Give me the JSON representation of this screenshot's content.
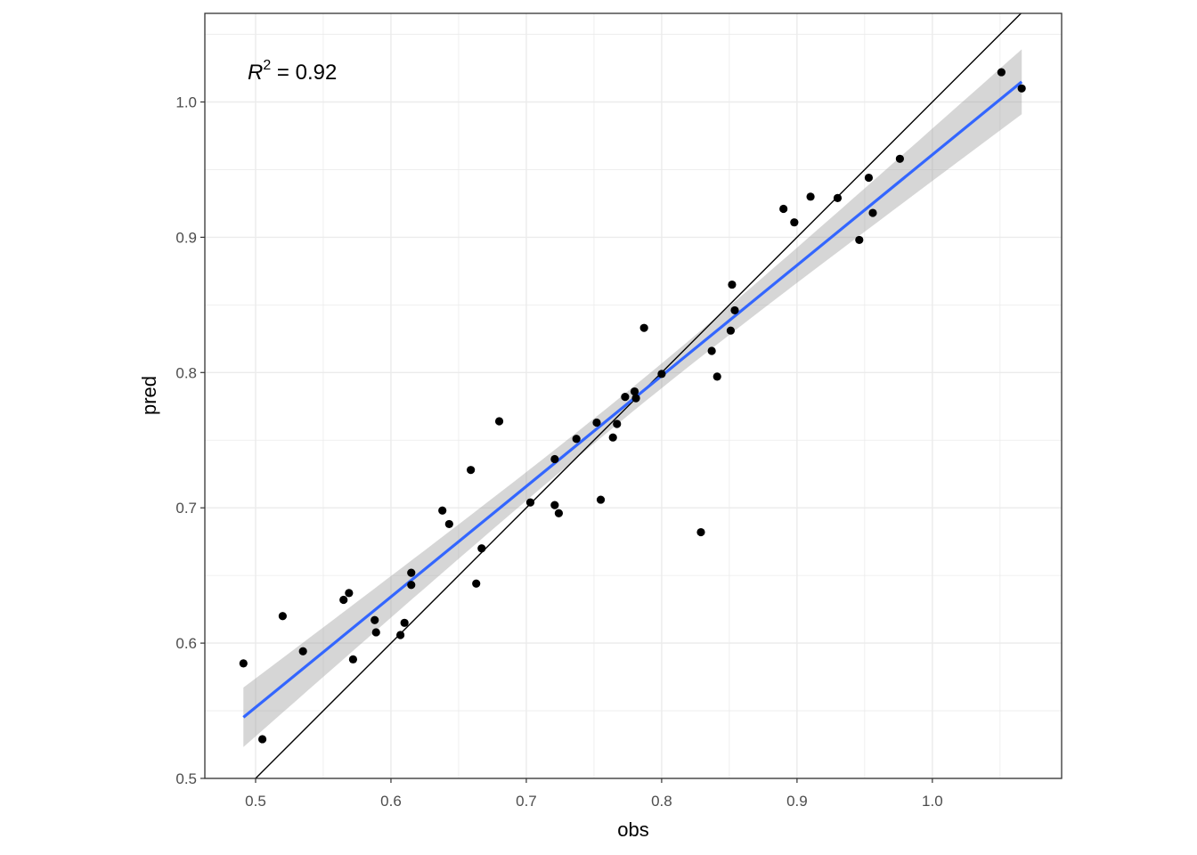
{
  "chart_data": {
    "type": "scatter",
    "xlabel": "obs",
    "ylabel": "pred",
    "xlim": [
      0.4625,
      1.0955
    ],
    "ylim": [
      0.5,
      1.0655
    ],
    "x_ticks": [
      0.5,
      0.6,
      0.7,
      0.8,
      0.9,
      1.0
    ],
    "x_tick_labels": [
      "0.5",
      "0.6",
      "0.7",
      "0.8",
      "0.9",
      "1.0"
    ],
    "y_ticks": [
      0.5,
      0.6,
      0.7,
      0.8,
      0.9,
      1.0
    ],
    "y_tick_labels": [
      "0.5",
      "0.6",
      "0.7",
      "0.8",
      "0.9",
      "1.0"
    ],
    "grid": true,
    "annotation": {
      "r2_symbol": "R",
      "r2_exponent": "2",
      "r2_text": " = 0.92"
    },
    "identity_line": {
      "slope": 1,
      "intercept": 0
    },
    "fit": {
      "slope": 0.817,
      "intercept": 0.144,
      "ci_halfwidth": [
        0.022,
        0.009,
        0.024
      ]
    },
    "points": [
      {
        "x": 0.491,
        "y": 0.585
      },
      {
        "x": 0.505,
        "y": 0.529
      },
      {
        "x": 0.52,
        "y": 0.62
      },
      {
        "x": 0.535,
        "y": 0.594
      },
      {
        "x": 0.565,
        "y": 0.632
      },
      {
        "x": 0.569,
        "y": 0.637
      },
      {
        "x": 0.572,
        "y": 0.588
      },
      {
        "x": 0.588,
        "y": 0.617
      },
      {
        "x": 0.589,
        "y": 0.608
      },
      {
        "x": 0.607,
        "y": 0.606
      },
      {
        "x": 0.61,
        "y": 0.615
      },
      {
        "x": 0.615,
        "y": 0.652
      },
      {
        "x": 0.615,
        "y": 0.643
      },
      {
        "x": 0.638,
        "y": 0.698
      },
      {
        "x": 0.643,
        "y": 0.688
      },
      {
        "x": 0.659,
        "y": 0.728
      },
      {
        "x": 0.663,
        "y": 0.644
      },
      {
        "x": 0.667,
        "y": 0.67
      },
      {
        "x": 0.68,
        "y": 0.764
      },
      {
        "x": 0.703,
        "y": 0.704
      },
      {
        "x": 0.721,
        "y": 0.736
      },
      {
        "x": 0.721,
        "y": 0.702
      },
      {
        "x": 0.724,
        "y": 0.696
      },
      {
        "x": 0.737,
        "y": 0.751
      },
      {
        "x": 0.752,
        "y": 0.763
      },
      {
        "x": 0.755,
        "y": 0.706
      },
      {
        "x": 0.764,
        "y": 0.752
      },
      {
        "x": 0.767,
        "y": 0.762
      },
      {
        "x": 0.773,
        "y": 0.782
      },
      {
        "x": 0.78,
        "y": 0.786
      },
      {
        "x": 0.781,
        "y": 0.781
      },
      {
        "x": 0.787,
        "y": 0.833
      },
      {
        "x": 0.8,
        "y": 0.799
      },
      {
        "x": 0.829,
        "y": 0.682
      },
      {
        "x": 0.837,
        "y": 0.816
      },
      {
        "x": 0.841,
        "y": 0.797
      },
      {
        "x": 0.851,
        "y": 0.831
      },
      {
        "x": 0.852,
        "y": 0.865
      },
      {
        "x": 0.854,
        "y": 0.846
      },
      {
        "x": 0.89,
        "y": 0.921
      },
      {
        "x": 0.898,
        "y": 0.911
      },
      {
        "x": 0.91,
        "y": 0.93
      },
      {
        "x": 0.93,
        "y": 0.929
      },
      {
        "x": 0.946,
        "y": 0.898
      },
      {
        "x": 0.953,
        "y": 0.944
      },
      {
        "x": 0.956,
        "y": 0.918
      },
      {
        "x": 0.976,
        "y": 0.958
      },
      {
        "x": 1.051,
        "y": 1.022
      },
      {
        "x": 1.066,
        "y": 1.01
      }
    ],
    "colors": {
      "points": "#000000",
      "fit_line": "#3366FF",
      "ci_band": "#999999",
      "grid": "#ebebeb",
      "panel_border": "#333333",
      "identity_line": "#000000"
    }
  }
}
